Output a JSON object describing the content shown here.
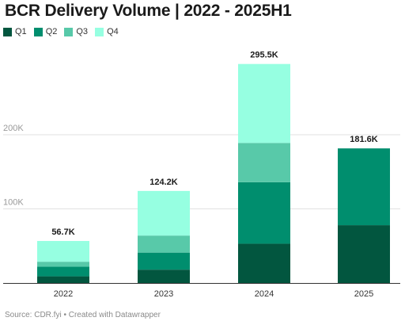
{
  "header": {
    "title": "BCR Delivery Volume | 2022 - 2025H1"
  },
  "footer": {
    "source": "Source: CDR.fyi • Created with Datawrapper"
  },
  "chart_data": {
    "type": "bar",
    "stacked": true,
    "title": "BCR Delivery Volume | 2022 - 2025H1",
    "xlabel": "",
    "ylabel": "",
    "categories": [
      "2022",
      "2023",
      "2024",
      "2025"
    ],
    "ylim": [
      0,
      300000
    ],
    "yticks": [
      {
        "value": 100000,
        "label": "100K"
      },
      {
        "value": 200000,
        "label": "200K"
      }
    ],
    "grid": true,
    "legend_position": "top-left",
    "series": [
      {
        "name": "Q1",
        "color": "#02563f",
        "values": [
          9000,
          18000,
          53000,
          78000
        ]
      },
      {
        "name": "Q2",
        "color": "#008e6e",
        "values": [
          13000,
          23000,
          83000,
          103600
        ]
      },
      {
        "name": "Q3",
        "color": "#58c9a9",
        "values": [
          6700,
          23000,
          53000,
          0
        ]
      },
      {
        "name": "Q4",
        "color": "#96ffe1",
        "values": [
          28000,
          60200,
          106500,
          0
        ]
      }
    ],
    "totals": [
      {
        "value": 56700,
        "label": "56.7K"
      },
      {
        "value": 124200,
        "label": "124.2K"
      },
      {
        "value": 295500,
        "label": "295.5K"
      },
      {
        "value": 181600,
        "label": "181.6K"
      }
    ]
  },
  "colors": {
    "grid": "#e2e2e2",
    "axis": "#333333",
    "tick_text": "#9a9a9a",
    "category_text": "#333333",
    "total_text": "#1a1a1a"
  }
}
